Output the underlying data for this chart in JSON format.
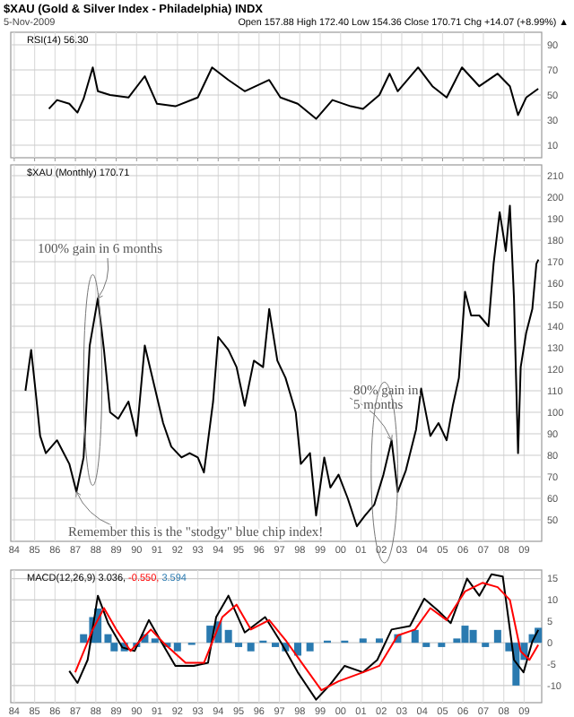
{
  "chart_data": [
    {
      "type": "line",
      "title": "$XAU (Gold & Silver Index - Philadelphia) INDX",
      "subtitle": "5-Nov-2009",
      "annotations": [
        "Open 157.88 High 172.40 Low 154.36 Close 170.71 Chg +14.07 (+8.99%) ▲"
      ],
      "xlim": [
        1983.83,
        2009.86
      ],
      "xticks": [
        {
          "value": 1984,
          "label": null
        },
        {
          "value": 1985,
          "label": null
        },
        {
          "value": 1986,
          "label": null
        },
        {
          "value": 1987,
          "label": null
        },
        {
          "value": 1988,
          "label": null
        },
        {
          "value": 1989,
          "label": null
        },
        {
          "value": 1990,
          "label": null
        },
        {
          "value": 1991,
          "label": null
        },
        {
          "value": 1992,
          "label": null
        },
        {
          "value": 1993,
          "label": null
        },
        {
          "value": 1994,
          "label": null
        },
        {
          "value": 1995,
          "label": null
        },
        {
          "value": 1996,
          "label": null
        },
        {
          "value": 1997,
          "label": null
        },
        {
          "value": 1998,
          "label": null
        },
        {
          "value": 1999,
          "label": null
        },
        {
          "value": 2000,
          "label": null
        },
        {
          "value": 2001,
          "label": null
        },
        {
          "value": 2002,
          "label": null
        },
        {
          "value": 2003,
          "label": null
        },
        {
          "value": 2004,
          "label": null
        },
        {
          "value": 2005,
          "label": null
        },
        {
          "value": 2006,
          "label": null
        },
        {
          "value": 2007,
          "label": null
        },
        {
          "value": 2008,
          "label": null
        },
        {
          "value": 2009,
          "label": null
        }
      ],
      "ylim": [
        0,
        100
      ],
      "yticks": [
        10,
        30,
        50,
        70,
        90
      ],
      "tick_labels": "y",
      "grid": true,
      "legend": "top left",
      "series": [
        {
          "name": "RSI(14) 56.30",
          "color": "#000000",
          "x": [
            1985.7,
            1986.1,
            1986.7,
            1987.1,
            1987.4,
            1987.85,
            1988.1,
            1988.7,
            1989.6,
            1990.4,
            1991.0,
            1991.9,
            1993.0,
            1993.7,
            1994.5,
            1995.3,
            1996.5,
            1997.05,
            1997.9,
            1998.8,
            1999.6,
            2000.5,
            2001.1,
            2001.9,
            2002.4,
            2002.8,
            2003.8,
            2004.5,
            2005.2,
            2005.95,
            2006.8,
            2007.7,
            2008.3,
            2008.7,
            2009.1,
            2009.69
          ],
          "values": [
            39,
            46,
            43,
            36,
            47,
            72,
            53,
            50,
            48,
            65,
            43,
            41,
            48,
            72,
            62,
            53,
            62,
            48,
            43,
            31,
            46,
            41,
            39,
            50,
            67,
            53,
            72,
            57,
            48,
            72,
            57,
            67,
            57,
            34,
            48,
            55
          ]
        }
      ]
    },
    {
      "type": "line",
      "xlim": [
        1983.83,
        2009.86
      ],
      "xticks": [
        {
          "value": 1984,
          "label": "84"
        },
        {
          "value": 1985,
          "label": "85"
        },
        {
          "value": 1986,
          "label": "86"
        },
        {
          "value": 1987,
          "label": "87"
        },
        {
          "value": 1988,
          "label": "88"
        },
        {
          "value": 1989,
          "label": "89"
        },
        {
          "value": 1990,
          "label": "90"
        },
        {
          "value": 1991,
          "label": "91"
        },
        {
          "value": 1992,
          "label": "92"
        },
        {
          "value": 1993,
          "label": "93"
        },
        {
          "value": 1994,
          "label": "94"
        },
        {
          "value": 1995,
          "label": "95"
        },
        {
          "value": 1996,
          "label": "96"
        },
        {
          "value": 1997,
          "label": "97"
        },
        {
          "value": 1998,
          "label": "98"
        },
        {
          "value": 1999,
          "label": "99"
        },
        {
          "value": 2000,
          "label": "00"
        },
        {
          "value": 2001,
          "label": "01"
        },
        {
          "value": 2002,
          "label": "02"
        },
        {
          "value": 2003,
          "label": "03"
        },
        {
          "value": 2004,
          "label": "04"
        },
        {
          "value": 2005,
          "label": "05"
        },
        {
          "value": 2006,
          "label": "06"
        },
        {
          "value": 2007,
          "label": "07"
        },
        {
          "value": 2008,
          "label": "08"
        },
        {
          "value": 2009,
          "label": "09"
        }
      ],
      "ylim": [
        40,
        215
      ],
      "yticks": [
        50,
        60,
        70,
        80,
        90,
        100,
        110,
        120,
        130,
        140,
        150,
        160,
        170,
        180,
        190,
        200,
        210
      ],
      "grid": true,
      "legend": "top left",
      "annotations": [
        {
          "text": "100% gain in 6 months",
          "x": 1988.1,
          "y": 153
        },
        {
          "text": "80% gain in 5 months",
          "x": 2002.5,
          "y": 87
        },
        {
          "text": "Remember this is the \"stodgy\" blue chip index!",
          "x": 1987.05,
          "y": 63
        }
      ],
      "series": [
        {
          "name": "$XAU (Monthly) 170.71",
          "color": "#000000",
          "x": [
            1984.55,
            1984.83,
            1985.1,
            1985.27,
            1985.55,
            1986.1,
            1986.7,
            1987.05,
            1987.4,
            1987.7,
            1988.1,
            1988.4,
            1988.7,
            1989.1,
            1989.6,
            1990.0,
            1990.4,
            1990.9,
            1991.3,
            1991.7,
            1992.2,
            1992.6,
            1993.0,
            1993.3,
            1993.75,
            1994.0,
            1994.5,
            1994.9,
            1995.3,
            1995.75,
            1996.2,
            1996.5,
            1996.9,
            1997.3,
            1997.8,
            1998.05,
            1998.5,
            1998.8,
            1999.2,
            1999.5,
            1999.9,
            2000.35,
            2000.8,
            2001.2,
            2001.65,
            2002.1,
            2002.5,
            2002.8,
            2003.2,
            2003.7,
            2003.95,
            2004.4,
            2004.8,
            2005.2,
            2005.5,
            2005.8,
            2006.1,
            2006.4,
            2006.8,
            2007.25,
            2007.5,
            2007.8,
            2008.1,
            2008.3,
            2008.5,
            2008.7,
            2008.83,
            2009.1,
            2009.4,
            2009.6,
            2009.7
          ],
          "values": [
            110,
            129,
            105,
            89,
            81,
            87,
            76,
            63,
            79,
            131,
            153,
            129,
            100,
            97,
            105,
            89,
            131,
            111,
            95,
            84,
            79,
            81,
            79,
            72,
            105,
            135,
            129,
            121,
            103,
            124,
            121,
            148,
            124,
            116,
            100,
            76,
            81,
            52,
            79,
            65,
            71,
            60,
            47,
            52,
            57,
            71,
            87,
            63,
            73,
            92,
            111,
            89,
            95,
            87,
            103,
            116,
            156,
            145,
            145,
            140,
            169,
            193,
            175,
            196,
            153,
            81,
            121,
            137,
            148,
            169,
            171
          ]
        }
      ]
    },
    {
      "type": "line",
      "xlim": [
        1983.83,
        2009.86
      ],
      "xticks": [
        {
          "value": 1984,
          "label": "84"
        },
        {
          "value": 1985,
          "label": "85"
        },
        {
          "value": 1986,
          "label": "86"
        },
        {
          "value": 1987,
          "label": "87"
        },
        {
          "value": 1988,
          "label": "88"
        },
        {
          "value": 1989,
          "label": "89"
        },
        {
          "value": 1990,
          "label": "90"
        },
        {
          "value": 1991,
          "label": "91"
        },
        {
          "value": 1992,
          "label": "92"
        },
        {
          "value": 1993,
          "label": "93"
        },
        {
          "value": 1994,
          "label": "94"
        },
        {
          "value": 1995,
          "label": "95"
        },
        {
          "value": 1996,
          "label": "96"
        },
        {
          "value": 1997,
          "label": "97"
        },
        {
          "value": 1998,
          "label": "98"
        },
        {
          "value": 1999,
          "label": "99"
        },
        {
          "value": 2000,
          "label": "00"
        },
        {
          "value": 2001,
          "label": "01"
        },
        {
          "value": 2002,
          "label": "02"
        },
        {
          "value": 2003,
          "label": "03"
        },
        {
          "value": 2004,
          "label": "04"
        },
        {
          "value": 2005,
          "label": "05"
        },
        {
          "value": 2006,
          "label": "06"
        },
        {
          "value": 2007,
          "label": "07"
        },
        {
          "value": 2008,
          "label": "08"
        },
        {
          "value": 2009,
          "label": "09"
        }
      ],
      "ylim": [
        -14,
        17
      ],
      "yticks": [
        -10,
        -5,
        0,
        5,
        10,
        15
      ],
      "grid": true,
      "legend": "top left",
      "series": [
        {
          "type": "bar",
          "name": "3.594",
          "color": "#2a7ab0",
          "x": [
            1987.4,
            1987.85,
            1988.1,
            1988.6,
            1988.9,
            1989.4,
            1990.0,
            1990.4,
            1990.9,
            1991.5,
            1992.0,
            1992.7,
            1993.6,
            1994.0,
            1994.5,
            1995.0,
            1995.6,
            1996.2,
            1996.8,
            1997.3,
            1997.9,
            1998.5,
            1999.35,
            2000.2,
            2001.1,
            2001.9,
            2002.8,
            2003.65,
            2004.2,
            2004.95,
            2005.7,
            2006.1,
            2006.5,
            2007.1,
            2007.7,
            2008.25,
            2008.6,
            2009.0,
            2009.4,
            2009.69
          ],
          "values": [
            2,
            6,
            8,
            2,
            -2,
            -2,
            -1,
            2,
            1,
            -1,
            -2,
            -0.5,
            4,
            5,
            3,
            -1,
            -2,
            0.5,
            -1,
            -2,
            -3,
            -2,
            0.5,
            0.5,
            1,
            1,
            2,
            3,
            -1,
            -1,
            1,
            4,
            3,
            -1,
            3,
            -2,
            -10,
            -4,
            2,
            3.5
          ]
        },
        {
          "name": "MACD(12,26,9) 3.036,",
          "color": "#000000",
          "x": [
            1986.7,
            1987.1,
            1987.6,
            1988.1,
            1988.6,
            1989.3,
            1989.9,
            1990.6,
            1991.2,
            1991.9,
            1992.8,
            1993.5,
            1993.9,
            1994.5,
            1995.3,
            1996.3,
            1997.05,
            1997.9,
            1998.8,
            1999.5,
            2000.2,
            2001.1,
            2001.8,
            2002.5,
            2003.4,
            2004.1,
            2004.8,
            2005.4,
            2005.95,
            2006.2,
            2006.8,
            2007.4,
            2007.95,
            2008.5,
            2008.97,
            2009.4,
            2009.69
          ],
          "values": [
            -6.6,
            -9.4,
            -4,
            11,
            4.6,
            -1.1,
            -1.9,
            5.3,
            0.3,
            -5.4,
            -5.4,
            -4.7,
            6,
            11,
            2.4,
            6,
            0.3,
            -6.9,
            -13.3,
            -9.7,
            -5.4,
            -6.9,
            -4,
            3.1,
            3.9,
            10.3,
            7.4,
            4.6,
            11.7,
            15,
            11,
            16,
            15.5,
            -4,
            -6.9,
            0.3,
            3
          ]
        },
        {
          "name": "-0.550,",
          "color": "#ff0000",
          "x": [
            1986.99,
            1987.85,
            1988.4,
            1989.0,
            1989.7,
            1990.7,
            1991.4,
            1992.4,
            1993.3,
            1994.2,
            1994.9,
            1995.6,
            1996.5,
            1997.35,
            1998.2,
            1999.06,
            1999.9,
            2001.1,
            2001.9,
            2002.8,
            2003.65,
            2004.4,
            2005.2,
            2006.1,
            2006.95,
            2007.7,
            2008.3,
            2008.83,
            2009.26,
            2009.69
          ],
          "values": [
            -6.9,
            3.1,
            8.1,
            3.1,
            -1.9,
            3.1,
            -0.4,
            -4.7,
            -4.7,
            6,
            8.9,
            3.1,
            5.3,
            0.3,
            -5.4,
            -11.1,
            -9,
            -6.9,
            -5.4,
            1.7,
            3.1,
            8.1,
            5.3,
            12,
            14,
            13,
            10,
            -2,
            -4,
            -0.5
          ]
        }
      ]
    }
  ]
}
